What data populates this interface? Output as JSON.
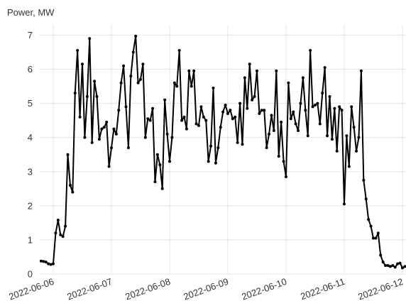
{
  "chart_data": {
    "type": "line",
    "y_label": "Power, MW",
    "x": [
      "2022-06-05T19:00",
      "2022-06-05T20:00",
      "2022-06-05T21:00",
      "2022-06-05T22:00",
      "2022-06-05T23:00",
      "2022-06-06T00:00",
      "2022-06-06T01:00",
      "2022-06-06T02:00",
      "2022-06-06T03:00",
      "2022-06-06T04:00",
      "2022-06-06T05:00",
      "2022-06-06T06:00",
      "2022-06-06T07:00",
      "2022-06-06T08:00",
      "2022-06-06T09:00",
      "2022-06-06T10:00",
      "2022-06-06T11:00",
      "2022-06-06T12:00",
      "2022-06-06T13:00",
      "2022-06-06T14:00",
      "2022-06-06T15:00",
      "2022-06-06T16:00",
      "2022-06-06T17:00",
      "2022-06-06T18:00",
      "2022-06-06T19:00",
      "2022-06-06T20:00",
      "2022-06-06T21:00",
      "2022-06-06T22:00",
      "2022-06-06T23:00",
      "2022-06-07T00:00",
      "2022-06-07T01:00",
      "2022-06-07T02:00",
      "2022-06-07T03:00",
      "2022-06-07T04:00",
      "2022-06-07T05:00",
      "2022-06-07T06:00",
      "2022-06-07T07:00",
      "2022-06-07T08:00",
      "2022-06-07T09:00",
      "2022-06-07T10:00",
      "2022-06-07T11:00",
      "2022-06-07T12:00",
      "2022-06-07T13:00",
      "2022-06-07T14:00",
      "2022-06-07T15:00",
      "2022-06-07T16:00",
      "2022-06-07T17:00",
      "2022-06-07T18:00",
      "2022-06-07T19:00",
      "2022-06-07T20:00",
      "2022-06-07T21:00",
      "2022-06-07T22:00",
      "2022-06-07T23:00",
      "2022-06-08T00:00",
      "2022-06-08T01:00",
      "2022-06-08T02:00",
      "2022-06-08T03:00",
      "2022-06-08T04:00",
      "2022-06-08T05:00",
      "2022-06-08T06:00",
      "2022-06-08T07:00",
      "2022-06-08T08:00",
      "2022-06-08T09:00",
      "2022-06-08T10:00",
      "2022-06-08T11:00",
      "2022-06-08T12:00",
      "2022-06-08T13:00",
      "2022-06-08T14:00",
      "2022-06-08T15:00",
      "2022-06-08T16:00",
      "2022-06-08T17:00",
      "2022-06-08T18:00",
      "2022-06-08T19:00",
      "2022-06-08T20:00",
      "2022-06-08T21:00",
      "2022-06-08T22:00",
      "2022-06-08T23:00",
      "2022-06-09T00:00",
      "2022-06-09T01:00",
      "2022-06-09T02:00",
      "2022-06-09T03:00",
      "2022-06-09T04:00",
      "2022-06-09T05:00",
      "2022-06-09T06:00",
      "2022-06-09T07:00",
      "2022-06-09T08:00",
      "2022-06-09T09:00",
      "2022-06-09T10:00",
      "2022-06-09T11:00",
      "2022-06-09T12:00",
      "2022-06-09T13:00",
      "2022-06-09T14:00",
      "2022-06-09T15:00",
      "2022-06-09T16:00",
      "2022-06-09T17:00",
      "2022-06-09T18:00",
      "2022-06-09T19:00",
      "2022-06-09T20:00",
      "2022-06-09T21:00",
      "2022-06-09T22:00",
      "2022-06-09T23:00",
      "2022-06-10T00:00",
      "2022-06-10T01:00",
      "2022-06-10T02:00",
      "2022-06-10T03:00",
      "2022-06-10T04:00",
      "2022-06-10T05:00",
      "2022-06-10T06:00",
      "2022-06-10T07:00",
      "2022-06-10T08:00",
      "2022-06-10T09:00",
      "2022-06-10T10:00",
      "2022-06-10T11:00",
      "2022-06-10T12:00",
      "2022-06-10T13:00",
      "2022-06-10T14:00",
      "2022-06-10T15:00",
      "2022-06-10T16:00",
      "2022-06-10T17:00",
      "2022-06-10T18:00",
      "2022-06-10T19:00",
      "2022-06-10T20:00",
      "2022-06-10T21:00",
      "2022-06-10T22:00",
      "2022-06-10T23:00",
      "2022-06-11T00:00",
      "2022-06-11T01:00",
      "2022-06-11T02:00",
      "2022-06-11T03:00",
      "2022-06-11T04:00",
      "2022-06-11T05:00",
      "2022-06-11T06:00",
      "2022-06-11T07:00",
      "2022-06-11T08:00",
      "2022-06-11T09:00",
      "2022-06-11T10:00",
      "2022-06-11T11:00",
      "2022-06-11T12:00",
      "2022-06-11T13:00",
      "2022-06-11T14:00",
      "2022-06-11T15:00",
      "2022-06-11T16:00",
      "2022-06-11T17:00",
      "2022-06-11T18:00",
      "2022-06-11T19:00",
      "2022-06-11T20:00",
      "2022-06-11T21:00",
      "2022-06-11T22:00",
      "2022-06-11T23:00",
      "2022-06-12T00:00",
      "2022-06-12T01:00"
    ],
    "values": [
      0.38,
      0.37,
      0.35,
      0.3,
      0.28,
      0.3,
      1.2,
      1.58,
      1.15,
      1.1,
      1.4,
      3.5,
      2.6,
      2.4,
      5.3,
      6.55,
      4.6,
      6.15,
      4.0,
      5.2,
      6.9,
      3.85,
      5.65,
      5.2,
      3.95,
      4.25,
      4.3,
      4.45,
      3.15,
      3.7,
      4.25,
      4.1,
      4.8,
      5.6,
      6.1,
      4.9,
      3.7,
      5.8,
      6.5,
      6.97,
      5.6,
      5.7,
      6.15,
      4.0,
      4.55,
      4.5,
      4.85,
      2.7,
      3.5,
      3.2,
      2.5,
      5.1,
      4.1,
      3.3,
      4.0,
      5.6,
      5.5,
      6.55,
      4.5,
      4.6,
      4.25,
      5.95,
      5.5,
      5.95,
      4.4,
      4.35,
      4.9,
      4.6,
      4.5,
      3.3,
      3.75,
      5.45,
      3.25,
      3.7,
      4.3,
      4.75,
      4.95,
      4.7,
      4.8,
      4.55,
      4.6,
      3.85,
      5.0,
      3.8,
      5.75,
      4.85,
      6.15,
      5.1,
      5.2,
      5.95,
      4.7,
      4.8,
      4.8,
      3.7,
      4.1,
      4.65,
      4.2,
      5.95,
      3.45,
      4.45,
      3.3,
      2.85,
      5.6,
      4.55,
      4.75,
      4.4,
      4.2,
      5.0,
      5.75,
      4.8,
      4.05,
      6.55,
      4.9,
      4.95,
      5.0,
      4.4,
      5.3,
      6.05,
      4.05,
      5.2,
      3.95,
      4.85,
      3.6,
      4.9,
      4.8,
      2.05,
      4.05,
      3.15,
      4.9,
      4.3,
      3.6,
      4.0,
      5.95,
      2.75,
      2.2,
      1.6,
      1.4,
      1.05,
      1.05,
      1.2,
      0.55,
      0.35,
      0.25,
      0.25,
      0.22,
      0.25,
      0.2,
      0.3,
      0.32,
      0.18,
      0.22
    ],
    "color": "#000000",
    "xlim": [
      "2022-06-05T18:00",
      "2022-06-12T02:00"
    ],
    "xticks": [
      "2022-06-06",
      "2022-06-07",
      "2022-06-08",
      "2022-06-09",
      "2022-06-10",
      "2022-06-11",
      "2022-06-12"
    ],
    "ylim": [
      0,
      7.3
    ],
    "yticks": [
      0,
      1,
      2,
      3,
      4,
      5,
      6,
      7
    ],
    "grid": true
  }
}
